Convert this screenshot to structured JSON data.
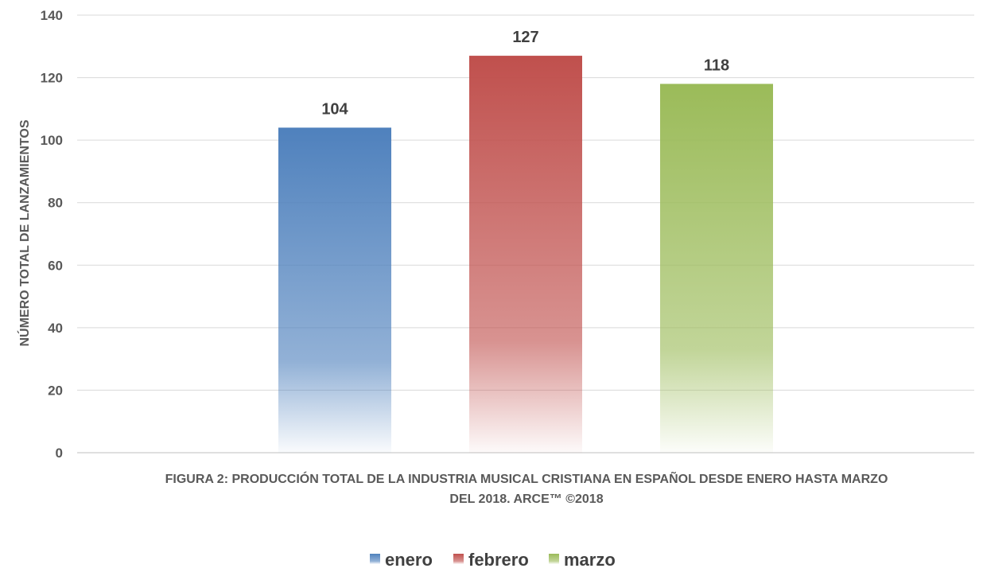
{
  "chart_data": {
    "type": "bar",
    "title": "",
    "categories": [
      "enero",
      "febrero",
      "marzo"
    ],
    "values": [
      104,
      127,
      118
    ],
    "ylabel": "NÚMERO TOTAL DE LANZAMIENTOS",
    "xlabel_lines": [
      "FIGURA 2: PRODUCCIÓN TOTAL DE LA INDUSTRIA MUSICAL CRISTIANA EN ESPAÑOL DESDE ENERO HASTA MARZO",
      "DEL 2018.  ARCE™ ©2018"
    ],
    "ylim": [
      0,
      140
    ],
    "yticks": [
      0,
      20,
      40,
      60,
      80,
      100,
      120,
      140
    ],
    "grid": true,
    "legend_position": "bottom",
    "colors": [
      "#4f81bd",
      "#c0504d",
      "#9bbb59"
    ]
  }
}
